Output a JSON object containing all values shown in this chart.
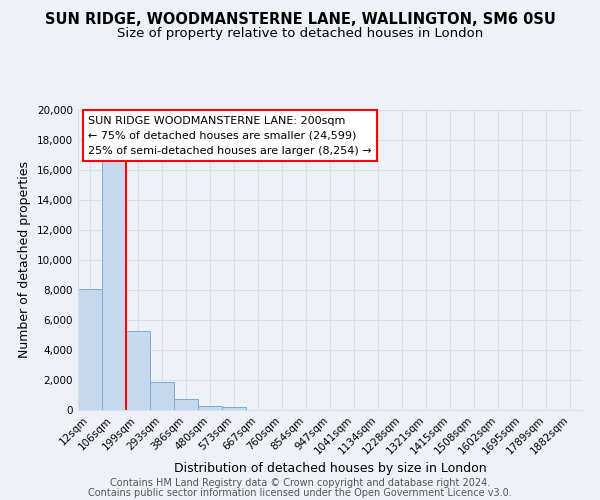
{
  "title": "SUN RIDGE, WOODMANSTERNE LANE, WALLINGTON, SM6 0SU",
  "subtitle": "Size of property relative to detached houses in London",
  "xlabel": "Distribution of detached houses by size in London",
  "ylabel": "Number of detached properties",
  "bar_labels": [
    "12sqm",
    "106sqm",
    "199sqm",
    "293sqm",
    "386sqm",
    "480sqm",
    "573sqm",
    "667sqm",
    "760sqm",
    "854sqm",
    "947sqm",
    "1041sqm",
    "1134sqm",
    "1228sqm",
    "1321sqm",
    "1415sqm",
    "1508sqm",
    "1602sqm",
    "1695sqm",
    "1789sqm",
    "1882sqm"
  ],
  "bar_values": [
    8100,
    16600,
    5300,
    1850,
    750,
    300,
    200,
    0,
    0,
    0,
    0,
    0,
    0,
    0,
    0,
    0,
    0,
    0,
    0,
    0,
    0
  ],
  "bar_color": "#c5d8ee",
  "bar_edge_color": "#7aadd4",
  "ylim": [
    0,
    20000
  ],
  "yticks": [
    0,
    2000,
    4000,
    6000,
    8000,
    10000,
    12000,
    14000,
    16000,
    18000,
    20000
  ],
  "red_line_x": 1.5,
  "annotation_line1": "SUN RIDGE WOODMANSTERNE LANE: 200sqm",
  "annotation_line2": "← 75% of detached houses are smaller (24,599)",
  "annotation_line3": "25% of semi-detached houses are larger (8,254) →",
  "footer_line1": "Contains HM Land Registry data © Crown copyright and database right 2024.",
  "footer_line2": "Contains public sector information licensed under the Open Government Licence v3.0.",
  "background_color": "#eef2f8",
  "grid_color": "#d8dfe8",
  "title_fontsize": 10.5,
  "subtitle_fontsize": 9.5,
  "axis_label_fontsize": 9,
  "tick_fontsize": 7.5,
  "annotation_fontsize": 8,
  "footer_fontsize": 7
}
